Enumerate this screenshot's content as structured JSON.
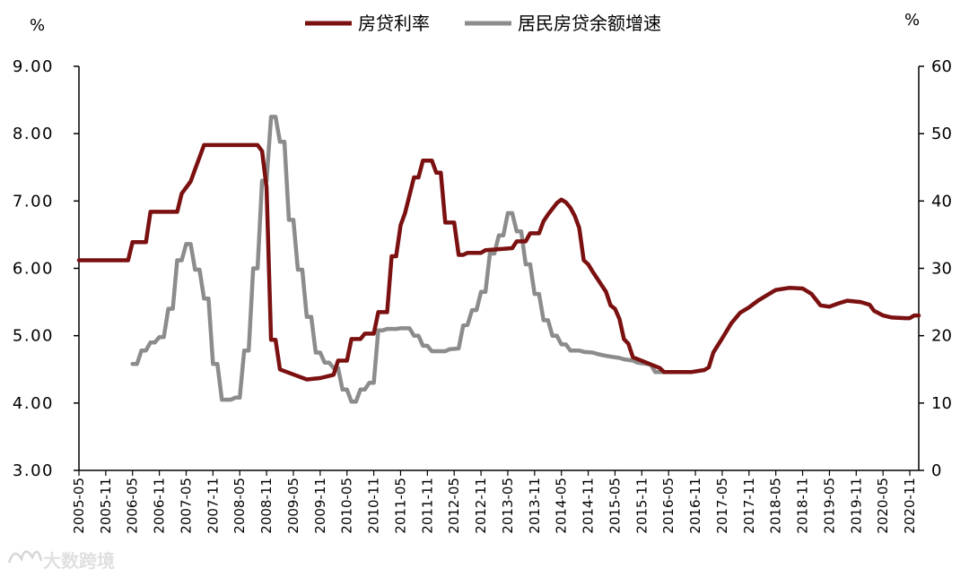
{
  "chart_data": {
    "type": "line",
    "left_unit": "%",
    "right_unit": "%",
    "left_axis": {
      "min": 3,
      "max": 9,
      "ticks": [
        "3.00",
        "4.00",
        "5.00",
        "6.00",
        "7.00",
        "8.00",
        "9.00"
      ]
    },
    "right_axis": {
      "min": 0,
      "max": 60,
      "ticks": [
        "0",
        "10",
        "20",
        "30",
        "40",
        "50",
        "60"
      ]
    },
    "x_ticks": [
      "2005-05",
      "2005-11",
      "2006-05",
      "2006-11",
      "2007-05",
      "2007-11",
      "2008-05",
      "2008-11",
      "2009-05",
      "2009-11",
      "2010-05",
      "2010-11",
      "2011-05",
      "2011-11",
      "2012-05",
      "2012-11",
      "2013-05",
      "2013-11",
      "2014-05",
      "2014-11",
      "2015-05",
      "2015-11",
      "2016-05",
      "2016-11",
      "2017-05",
      "2017-11",
      "2018-05",
      "2018-11",
      "2019-05",
      "2019-11",
      "2020-05",
      "2020-11"
    ],
    "x_range": [
      "2005-05",
      "2021-01"
    ],
    "colors": {
      "mortgage_rate": "#7b1010",
      "loan_growth": "#8c8c8c"
    },
    "series": [
      {
        "name": "房贷利率",
        "axis": "left",
        "points": [
          [
            "2005-05",
            6.12
          ],
          [
            "2006-04",
            6.12
          ],
          [
            "2006-05",
            6.39
          ],
          [
            "2006-08",
            6.39
          ],
          [
            "2006-09",
            6.84
          ],
          [
            "2007-03",
            6.84
          ],
          [
            "2007-04",
            7.11
          ],
          [
            "2007-05",
            7.2
          ],
          [
            "2007-06",
            7.29
          ],
          [
            "2007-07",
            7.47
          ],
          [
            "2007-08",
            7.65
          ],
          [
            "2007-09",
            7.83
          ],
          [
            "2008-09",
            7.83
          ],
          [
            "2008-10",
            7.74
          ],
          [
            "2008-11",
            7.2
          ],
          [
            "2008-12",
            4.94
          ],
          [
            "2009-01",
            4.94
          ],
          [
            "2009-02",
            4.5
          ],
          [
            "2009-06",
            4.4
          ],
          [
            "2009-08",
            4.35
          ],
          [
            "2009-11",
            4.37
          ],
          [
            "2010-02",
            4.42
          ],
          [
            "2010-03",
            4.63
          ],
          [
            "2010-05",
            4.63
          ],
          [
            "2010-06",
            4.95
          ],
          [
            "2010-08",
            4.95
          ],
          [
            "2010-09",
            5.03
          ],
          [
            "2010-11",
            5.03
          ],
          [
            "2010-12",
            5.35
          ],
          [
            "2011-02",
            5.35
          ],
          [
            "2011-03",
            6.18
          ],
          [
            "2011-04",
            6.18
          ],
          [
            "2011-05",
            6.64
          ],
          [
            "2011-06",
            6.82
          ],
          [
            "2011-08",
            7.35
          ],
          [
            "2011-09",
            7.35
          ],
          [
            "2011-10",
            7.6
          ],
          [
            "2011-12",
            7.6
          ],
          [
            "2012-01",
            7.42
          ],
          [
            "2012-02",
            7.42
          ],
          [
            "2012-03",
            6.68
          ],
          [
            "2012-05",
            6.68
          ],
          [
            "2012-06",
            6.2
          ],
          [
            "2012-07",
            6.2
          ],
          [
            "2012-08",
            6.23
          ],
          [
            "2012-11",
            6.23
          ],
          [
            "2012-12",
            6.27
          ],
          [
            "2013-06",
            6.3
          ],
          [
            "2013-07",
            6.4
          ],
          [
            "2013-09",
            6.4
          ],
          [
            "2013-10",
            6.52
          ],
          [
            "2013-12",
            6.52
          ],
          [
            "2014-01",
            6.7
          ],
          [
            "2014-02",
            6.8
          ],
          [
            "2014-04",
            6.97
          ],
          [
            "2014-05",
            7.02
          ],
          [
            "2014-06",
            6.98
          ],
          [
            "2014-07",
            6.9
          ],
          [
            "2014-08",
            6.78
          ],
          [
            "2014-09",
            6.6
          ],
          [
            "2014-10",
            6.12
          ],
          [
            "2014-11",
            6.06
          ],
          [
            "2014-12",
            5.95
          ],
          [
            "2015-02",
            5.75
          ],
          [
            "2015-03",
            5.65
          ],
          [
            "2015-04",
            5.45
          ],
          [
            "2015-05",
            5.4
          ],
          [
            "2015-06",
            5.25
          ],
          [
            "2015-07",
            4.95
          ],
          [
            "2015-08",
            4.88
          ],
          [
            "2015-09",
            4.68
          ],
          [
            "2015-12",
            4.6
          ],
          [
            "2016-03",
            4.52
          ],
          [
            "2016-04",
            4.46
          ],
          [
            "2016-07",
            4.46
          ],
          [
            "2016-10",
            4.46
          ],
          [
            "2017-01",
            4.49
          ],
          [
            "2017-02",
            4.53
          ],
          [
            "2017-03",
            4.75
          ],
          [
            "2017-05",
            4.96
          ],
          [
            "2017-07",
            5.18
          ],
          [
            "2017-09",
            5.34
          ],
          [
            "2017-11",
            5.42
          ],
          [
            "2018-01",
            5.52
          ],
          [
            "2018-03",
            5.6
          ],
          [
            "2018-05",
            5.68
          ],
          [
            "2018-08",
            5.71
          ],
          [
            "2018-11",
            5.7
          ],
          [
            "2019-01",
            5.62
          ],
          [
            "2019-03",
            5.45
          ],
          [
            "2019-05",
            5.43
          ],
          [
            "2019-07",
            5.48
          ],
          [
            "2019-09",
            5.52
          ],
          [
            "2019-12",
            5.5
          ],
          [
            "2020-02",
            5.46
          ],
          [
            "2020-03",
            5.37
          ],
          [
            "2020-05",
            5.3
          ],
          [
            "2020-07",
            5.27
          ],
          [
            "2020-10",
            5.26
          ],
          [
            "2020-11",
            5.26
          ],
          [
            "2020-12",
            5.3
          ],
          [
            "2021-01",
            5.3
          ]
        ]
      },
      {
        "name": "居民房贷余额增速",
        "axis": "right",
        "points": [
          [
            "2006-05",
            15.8
          ],
          [
            "2006-06",
            15.8
          ],
          [
            "2006-07",
            17.8
          ],
          [
            "2006-08",
            17.8
          ],
          [
            "2006-09",
            19.0
          ],
          [
            "2006-10",
            19.0
          ],
          [
            "2006-11",
            19.8
          ],
          [
            "2006-12",
            19.8
          ],
          [
            "2007-01",
            24.0
          ],
          [
            "2007-02",
            24.0
          ],
          [
            "2007-03",
            31.2
          ],
          [
            "2007-04",
            31.2
          ],
          [
            "2007-05",
            33.6
          ],
          [
            "2007-06",
            33.6
          ],
          [
            "2007-07",
            29.8
          ],
          [
            "2007-08",
            29.8
          ],
          [
            "2007-09",
            25.5
          ],
          [
            "2007-10",
            25.5
          ],
          [
            "2007-11",
            15.8
          ],
          [
            "2007-12",
            15.8
          ],
          [
            "2008-01",
            10.5
          ],
          [
            "2008-03",
            10.5
          ],
          [
            "2008-04",
            10.8
          ],
          [
            "2008-05",
            10.8
          ],
          [
            "2008-06",
            17.8
          ],
          [
            "2008-07",
            17.8
          ],
          [
            "2008-08",
            30.0
          ],
          [
            "2008-09",
            30.0
          ],
          [
            "2008-10",
            43.0
          ],
          [
            "2008-11",
            43.0
          ],
          [
            "2008-12",
            52.5
          ],
          [
            "2009-01",
            52.5
          ],
          [
            "2009-02",
            48.8
          ],
          [
            "2009-03",
            48.8
          ],
          [
            "2009-04",
            37.2
          ],
          [
            "2009-05",
            37.2
          ],
          [
            "2009-06",
            29.8
          ],
          [
            "2009-07",
            29.8
          ],
          [
            "2009-08",
            22.8
          ],
          [
            "2009-09",
            22.8
          ],
          [
            "2009-10",
            17.5
          ],
          [
            "2009-11",
            17.5
          ],
          [
            "2009-12",
            16.0
          ],
          [
            "2010-01",
            16.0
          ],
          [
            "2010-02",
            15.2
          ],
          [
            "2010-03",
            15.2
          ],
          [
            "2010-04",
            12.0
          ],
          [
            "2010-05",
            12.0
          ],
          [
            "2010-06",
            10.2
          ],
          [
            "2010-07",
            10.2
          ],
          [
            "2010-08",
            12.0
          ],
          [
            "2010-09",
            12.0
          ],
          [
            "2010-10",
            13.0
          ],
          [
            "2010-11",
            13.0
          ],
          [
            "2010-12",
            20.8
          ],
          [
            "2011-01",
            20.8
          ],
          [
            "2011-02",
            21.0
          ],
          [
            "2011-04",
            21.0
          ],
          [
            "2011-05",
            21.1
          ],
          [
            "2011-07",
            21.1
          ],
          [
            "2011-08",
            20.0
          ],
          [
            "2011-09",
            20.0
          ],
          [
            "2011-10",
            18.5
          ],
          [
            "2011-11",
            18.5
          ],
          [
            "2011-12",
            17.7
          ],
          [
            "2012-03",
            17.7
          ],
          [
            "2012-04",
            18.0
          ],
          [
            "2012-06",
            18.1
          ],
          [
            "2012-07",
            21.5
          ],
          [
            "2012-08",
            21.6
          ],
          [
            "2012-09",
            23.8
          ],
          [
            "2012-10",
            23.8
          ],
          [
            "2012-11",
            26.5
          ],
          [
            "2012-12",
            26.5
          ],
          [
            "2013-01",
            32.2
          ],
          [
            "2013-02",
            32.2
          ],
          [
            "2013-03",
            34.9
          ],
          [
            "2013-04",
            34.9
          ],
          [
            "2013-05",
            38.2
          ],
          [
            "2013-06",
            38.2
          ],
          [
            "2013-07",
            35.5
          ],
          [
            "2013-08",
            35.5
          ],
          [
            "2013-09",
            30.6
          ],
          [
            "2013-10",
            30.6
          ],
          [
            "2013-11",
            26.2
          ],
          [
            "2013-12",
            26.2
          ],
          [
            "2014-01",
            22.3
          ],
          [
            "2014-02",
            22.3
          ],
          [
            "2014-03",
            20.0
          ],
          [
            "2014-04",
            20.0
          ],
          [
            "2014-05",
            18.7
          ],
          [
            "2014-06",
            18.7
          ],
          [
            "2014-07",
            17.8
          ],
          [
            "2014-09",
            17.8
          ],
          [
            "2014-10",
            17.6
          ],
          [
            "2014-12",
            17.5
          ],
          [
            "2015-01",
            17.3
          ],
          [
            "2015-03",
            17.0
          ],
          [
            "2015-04",
            16.9
          ],
          [
            "2015-06",
            16.7
          ],
          [
            "2015-07",
            16.5
          ],
          [
            "2015-09",
            16.3
          ],
          [
            "2015-10",
            16.0
          ],
          [
            "2015-12",
            15.8
          ],
          [
            "2016-01",
            15.7
          ],
          [
            "2016-02",
            14.6
          ],
          [
            "2016-04",
            14.6
          ],
          [
            "2016-05",
            14.6
          ]
        ]
      }
    ]
  }
}
